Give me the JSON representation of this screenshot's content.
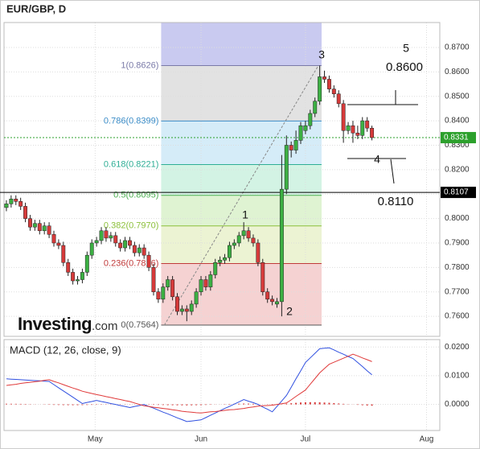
{
  "chart_data": {
    "type": "candlestick",
    "title": "EUR/GBP, D",
    "logo": {
      "name": "Investing",
      "suffix": ".com"
    },
    "up_color": "#3cb043",
    "down_color": "#d63a3a",
    "grid": true,
    "xlim": [
      -0.5,
      91.3
    ],
    "xticks": [
      {
        "value": 18.7,
        "label": "May"
      },
      {
        "value": 41,
        "label": "Jun"
      },
      {
        "value": 63,
        "label": "Jul"
      },
      {
        "value": 88.5,
        "label": "Aug"
      }
    ],
    "ylim": [
      0.7518,
      0.8802
    ],
    "yticks": [
      {
        "value": 0.87,
        "label": "0.8700"
      },
      {
        "value": 0.86,
        "label": "0.8600"
      },
      {
        "value": 0.85,
        "label": "0.8500"
      },
      {
        "value": 0.84,
        "label": "0.8400"
      },
      {
        "value": 0.83,
        "label": "0.8300"
      },
      {
        "value": 0.82,
        "label": "0.8200"
      },
      {
        "value": 0.81,
        "label": "0.8100"
      },
      {
        "value": 0.8,
        "label": "0.8000"
      },
      {
        "value": 0.79,
        "label": "0.7900"
      },
      {
        "value": 0.78,
        "label": "0.7800"
      },
      {
        "value": 0.77,
        "label": "0.7700"
      },
      {
        "value": 0.76,
        "label": "0.7600"
      }
    ],
    "candles": [
      [
        0.8045,
        0.8075,
        0.803,
        0.806
      ],
      [
        0.806,
        0.8095,
        0.8045,
        0.808
      ],
      [
        0.808,
        0.8095,
        0.8055,
        0.807
      ],
      [
        0.807,
        0.8085,
        0.8035,
        0.805
      ],
      [
        0.805,
        0.8065,
        0.7985,
        0.8
      ],
      [
        0.8,
        0.8015,
        0.795,
        0.7965
      ],
      [
        0.7965,
        0.7995,
        0.795,
        0.798
      ],
      [
        0.798,
        0.7995,
        0.7935,
        0.795
      ],
      [
        0.795,
        0.7985,
        0.7935,
        0.797
      ],
      [
        0.797,
        0.7985,
        0.792,
        0.7935
      ],
      [
        0.7935,
        0.795,
        0.7885,
        0.79
      ],
      [
        0.79,
        0.7915,
        0.7875,
        0.789
      ],
      [
        0.789,
        0.7905,
        0.7805,
        0.782
      ],
      [
        0.782,
        0.7835,
        0.7765,
        0.778
      ],
      [
        0.778,
        0.7795,
        0.773,
        0.7745
      ],
      [
        0.7745,
        0.7765,
        0.773,
        0.775
      ],
      [
        0.775,
        0.7795,
        0.7735,
        0.778
      ],
      [
        0.778,
        0.7865,
        0.7765,
        0.785
      ],
      [
        0.785,
        0.7915,
        0.7835,
        0.79
      ],
      [
        0.79,
        0.7925,
        0.7885,
        0.791
      ],
      [
        0.791,
        0.7965,
        0.7895,
        0.795
      ],
      [
        0.795,
        0.7965,
        0.7905,
        0.792
      ],
      [
        0.792,
        0.7945,
        0.7905,
        0.793
      ],
      [
        0.793,
        0.7945,
        0.7885,
        0.79
      ],
      [
        0.79,
        0.7915,
        0.7865,
        0.788
      ],
      [
        0.788,
        0.7925,
        0.7865,
        0.791
      ],
      [
        0.791,
        0.7925,
        0.7875,
        0.789
      ],
      [
        0.789,
        0.7905,
        0.7845,
        0.786
      ],
      [
        0.786,
        0.7895,
        0.7845,
        0.788
      ],
      [
        0.788,
        0.7895,
        0.7835,
        0.785
      ],
      [
        0.785,
        0.7865,
        0.7785,
        0.78
      ],
      [
        0.78,
        0.7815,
        0.7685,
        0.77
      ],
      [
        0.77,
        0.7715,
        0.7655,
        0.767
      ],
      [
        0.767,
        0.7735,
        0.7655,
        0.772
      ],
      [
        0.772,
        0.7765,
        0.7705,
        0.775
      ],
      [
        0.775,
        0.7765,
        0.7665,
        0.768
      ],
      [
        0.768,
        0.7695,
        0.7605,
        0.762
      ],
      [
        0.762,
        0.7645,
        0.7605,
        0.763
      ],
      [
        0.763,
        0.7645,
        0.758,
        0.762
      ],
      [
        0.762,
        0.7665,
        0.7605,
        0.765
      ],
      [
        0.765,
        0.7715,
        0.7635,
        0.77
      ],
      [
        0.77,
        0.7765,
        0.7685,
        0.775
      ],
      [
        0.775,
        0.7765,
        0.7705,
        0.772
      ],
      [
        0.772,
        0.7785,
        0.7705,
        0.777
      ],
      [
        0.777,
        0.7835,
        0.7755,
        0.782
      ],
      [
        0.782,
        0.7845,
        0.7805,
        0.783
      ],
      [
        0.783,
        0.7855,
        0.7815,
        0.784
      ],
      [
        0.784,
        0.7905,
        0.7825,
        0.789
      ],
      [
        0.789,
        0.7915,
        0.7875,
        0.79
      ],
      [
        0.79,
        0.7945,
        0.7885,
        0.793
      ],
      [
        0.793,
        0.7985,
        0.7915,
        0.795
      ],
      [
        0.795,
        0.7965,
        0.7905,
        0.792
      ],
      [
        0.792,
        0.7935,
        0.7885,
        0.79
      ],
      [
        0.79,
        0.7915,
        0.7805,
        0.782
      ],
      [
        0.782,
        0.7835,
        0.7685,
        0.77
      ],
      [
        0.77,
        0.7715,
        0.7655,
        0.767
      ],
      [
        0.767,
        0.7685,
        0.7645,
        0.766
      ],
      [
        0.765,
        0.7675,
        0.7635,
        0.766
      ],
      [
        0.766,
        0.826,
        0.76,
        0.812
      ],
      [
        0.812,
        0.834,
        0.81,
        0.83
      ],
      [
        0.83,
        0.8315,
        0.825,
        0.828
      ],
      [
        0.828,
        0.836,
        0.8265,
        0.832
      ],
      [
        0.832,
        0.8395,
        0.8305,
        0.838
      ],
      [
        0.836,
        0.84,
        0.8345,
        0.838
      ],
      [
        0.838,
        0.8445,
        0.8365,
        0.843
      ],
      [
        0.843,
        0.8495,
        0.8415,
        0.848
      ],
      [
        0.848,
        0.8626,
        0.8465,
        0.858
      ],
      [
        0.858,
        0.8605,
        0.8555,
        0.857
      ],
      [
        0.857,
        0.8585,
        0.8515,
        0.853
      ],
      [
        0.853,
        0.8545,
        0.8495,
        0.851
      ],
      [
        0.851,
        0.8525,
        0.8455,
        0.847
      ],
      [
        0.847,
        0.8485,
        0.831,
        0.836
      ],
      [
        0.836,
        0.8395,
        0.8345,
        0.838
      ],
      [
        0.838,
        0.84,
        0.831,
        0.835
      ],
      [
        0.835,
        0.838,
        0.8325,
        0.834
      ],
      [
        0.834,
        0.8415,
        0.8325,
        0.84
      ],
      [
        0.84,
        0.8415,
        0.8355,
        0.837
      ],
      [
        0.837,
        0.838,
        0.832,
        0.8331
      ]
    ],
    "last_price": {
      "value": 0.8331,
      "label": "0.8331",
      "color": "#2ca02c"
    },
    "price_line": {
      "value": 0.8107,
      "label": "0.8107",
      "color": "#000000"
    },
    "fib": {
      "x_start": 32.6,
      "x_end": 66.4,
      "top_color": "#c9caf0",
      "levels": [
        {
          "value": 0.8626,
          "label": "1(0.8626)",
          "color": "#7a7aa8",
          "fill": "#e2e2e2"
        },
        {
          "value": 0.8399,
          "label": "0.786(0.8399)",
          "color": "#3c8dc8",
          "fill": "#d5ecf8"
        },
        {
          "value": 0.8221,
          "label": "0.618(0.8221)",
          "color": "#2fae95",
          "fill": "#d3f3e4"
        },
        {
          "value": 0.8095,
          "label": "0.5(0.8095)",
          "color": "#4caf50",
          "fill": "#dff3d2"
        },
        {
          "value": 0.797,
          "label": "0.382(0.7970)",
          "color": "#8cc03a",
          "fill": "#ecf3d3"
        },
        {
          "value": 0.7816,
          "label": "0.236(0.7816)",
          "color": "#c03a3a",
          "fill": "#f5d2d2"
        },
        {
          "value": 0.7564,
          "label": "0(0.7564)",
          "color": "#555555",
          "fill": "#f5d2d2"
        }
      ]
    },
    "annotations": [
      "1",
      "2",
      "3",
      "4",
      "5",
      "0.8600",
      "0.8110"
    ],
    "macd": {
      "title": "MACD (12, 26, close, 9)",
      "ylim": [
        -0.0091,
        0.0226
      ],
      "yticks": [
        {
          "value": 0.02,
          "label": "0.0200"
        },
        {
          "value": 0.01,
          "label": "0.0100"
        },
        {
          "value": 0,
          "label": "0.0000"
        }
      ],
      "macd_color": "#3050e0",
      "signal_color": "#e03a3a",
      "hist_color": "#d63a3a",
      "macd": [
        0.0089,
        0.0088,
        0.0087,
        0.0086,
        0.0085,
        0.0084,
        0.0083,
        0.0082,
        0.0081,
        0.008,
        0.0069,
        0.0058,
        0.0047,
        0.0036,
        0.0025,
        0.0014,
        0.0003,
        0.0007,
        0.001,
        0.0014,
        0.001,
        0.0007,
        0.0003,
        0,
        -0.0004,
        -0.0007,
        -0.0011,
        -0.0007,
        -0.0004,
        0,
        -0.0007,
        -0.0013,
        -0.002,
        -0.0027,
        -0.0033,
        -0.004,
        -0.0047,
        -0.0053,
        -0.006,
        -0.0058,
        -0.0056,
        -0.0054,
        -0.0046,
        -0.0038,
        -0.003,
        -0.0022,
        -0.0014,
        -0.0007,
        0.0001,
        0.0009,
        0.0017,
        0.0011,
        0.0006,
        0,
        -0.0009,
        -0.0017,
        -0.0026,
        -0.0007,
        0.0012,
        0.0031,
        0.006,
        0.0089,
        0.0117,
        0.0146,
        0.0162,
        0.0178,
        0.0194,
        0.0196,
        0.0197,
        0.019,
        0.0182,
        0.0175,
        0.0167,
        0.016,
        0.0146,
        0.0132,
        0.0117,
        0.0103
      ],
      "signal": [
        0.0066,
        0.0068,
        0.007,
        0.0073,
        0.0075,
        0.0077,
        0.0079,
        0.0081,
        0.0084,
        0.0086,
        0.008,
        0.0075,
        0.0069,
        0.0063,
        0.0057,
        0.0052,
        0.0046,
        0.0042,
        0.0038,
        0.0034,
        0.0031,
        0.0027,
        0.0024,
        0.002,
        0.0017,
        0.0013,
        0.001,
        0.0005,
        0,
        -0.0005,
        -0.0007,
        -0.001,
        -0.0012,
        -0.0014,
        -0.0016,
        -0.0019,
        -0.0021,
        -0.0024,
        -0.0026,
        -0.0027,
        -0.0029,
        -0.003,
        -0.0028,
        -0.0026,
        -0.0025,
        -0.0023,
        -0.0021,
        -0.0019,
        -0.0018,
        -0.0016,
        -0.0014,
        -0.0011,
        -0.0009,
        -0.0006,
        -0.0005,
        -0.0004,
        -0.0003,
        0,
        0.0002,
        0.0005,
        0.0016,
        0.0028,
        0.0039,
        0.005,
        0.007,
        0.009,
        0.011,
        0.0125,
        0.014,
        0.0147,
        0.0154,
        0.0161,
        0.0168,
        0.0175,
        0.0169,
        0.0162,
        0.0156,
        0.0149
      ],
      "histogram": [
        0.00023,
        0.00022,
        0.0002,
        0.00018,
        0.00015,
        0.0001,
        5e-05,
        -2e-05,
        -8e-05,
        -0.00012,
        -0.00017,
        -0.0002,
        -0.00024,
        -0.00026,
        -0.00027,
        -0.00026,
        -0.00024,
        -0.0002,
        -0.00016,
        -0.00012,
        -0.0001,
        -8e-05,
        -6e-05,
        -6e-05,
        -8e-05,
        -8e-05,
        -6e-05,
        -4e-05,
        -4e-05,
        -6e-05,
        -0.0001,
        -0.00014,
        -0.00018,
        -0.00022,
        -0.00026,
        -0.00028,
        -0.0003,
        -0.00032,
        -0.00034,
        -0.00031,
        -0.00027,
        -0.00024,
        -0.00018,
        -0.00012,
        -5e-05,
        3e-05,
        0.0001,
        0.00016,
        0.00021,
        0.00025,
        0.00029,
        0.00026,
        0.0002,
        0.00012,
        2e-05,
        -6e-05,
        -0.00015,
        -6e-05,
        9e-05,
        0.00025,
        0.0004,
        0.00054,
        0.00066,
        0.00073,
        0.00077,
        0.00076,
        0.00072,
        0.00064,
        0.00056,
        0.00045,
        0.00032,
        0.0002,
        8e-05,
        -4e-05,
        -0.00016,
        -0.00028,
        -0.00038,
        -0.00045
      ]
    }
  }
}
